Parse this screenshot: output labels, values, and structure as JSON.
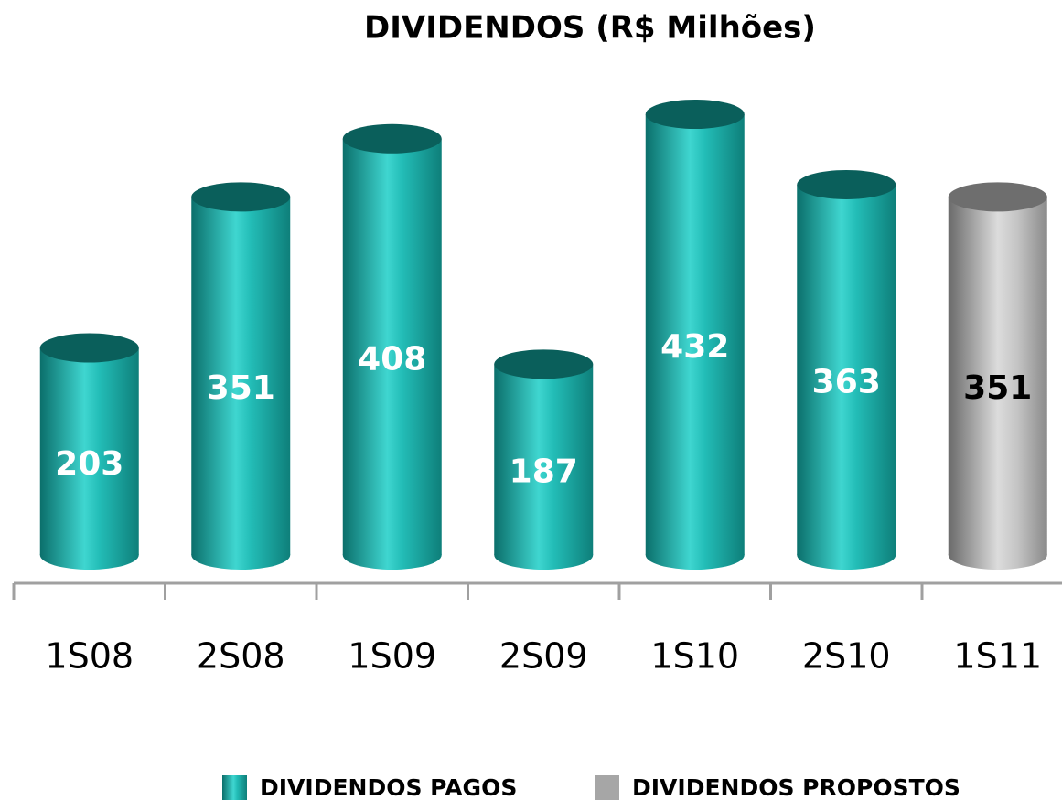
{
  "chart_data": {
    "type": "bar",
    "title": "DIVIDENDOS (R$ Milhões)",
    "categories": [
      "1S08",
      "2S08",
      "1S09",
      "2S09",
      "1S10",
      "2S10",
      "1S11"
    ],
    "series": [
      {
        "name": "DIVIDENDOS PAGOS",
        "color": "#1aa8a3",
        "values": [
          203,
          351,
          408,
          187,
          432,
          363,
          null
        ]
      },
      {
        "name": "DIVIDENDOS PROPOSTOS",
        "color": "#a6a6a6",
        "values": [
          null,
          null,
          null,
          null,
          null,
          null,
          351
        ]
      }
    ],
    "legend": "bottom"
  }
}
